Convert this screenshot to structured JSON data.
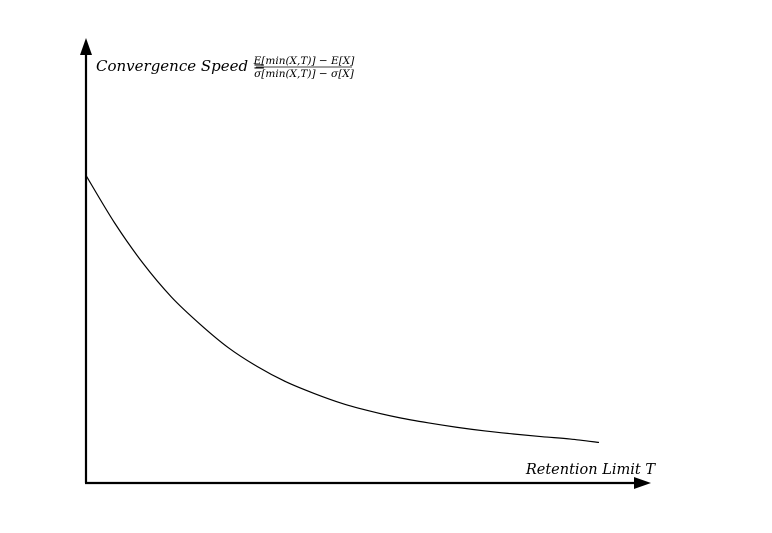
{
  "chart_data": {
    "type": "line",
    "title": "",
    "xlabel": "Retention Limit T",
    "ylabel": {
      "text": "Convergence Speed =",
      "numerator": "E[min(X,T)] − E[X]",
      "denominator": "σ[min(X,T)] − σ[X]"
    },
    "xlim": [
      0,
      10
    ],
    "ylim": [
      0,
      1
    ],
    "grid": false,
    "legend": "none",
    "series": [
      {
        "x": [
          0,
          0.5,
          1,
          1.5,
          2,
          2.5,
          3,
          3.5,
          4,
          4.5,
          5,
          5.5,
          6,
          6.5,
          7,
          7.5,
          8,
          8.5,
          9
        ],
        "values": [
          0.91,
          0.77,
          0.65,
          0.55,
          0.47,
          0.4,
          0.345,
          0.3,
          0.265,
          0.235,
          0.212,
          0.193,
          0.178,
          0.165,
          0.154,
          0.145,
          0.137,
          0.13,
          0.12
        ]
      }
    ],
    "colors": {
      "axis": "#000000",
      "line": "#000000"
    }
  }
}
